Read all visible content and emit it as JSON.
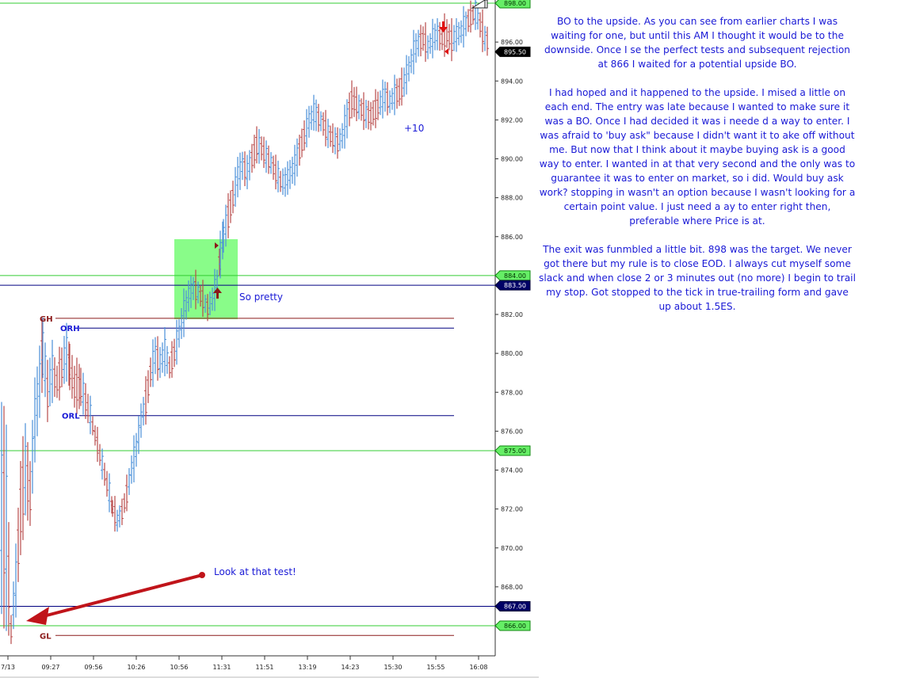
{
  "chart_data": {
    "type": "bar",
    "description_type": "ohlc-price-bars",
    "ylim": [
      864.2,
      898.4
    ],
    "y_ticks": [
      866,
      868,
      870,
      872,
      874,
      876,
      878,
      880,
      882,
      884,
      886,
      888,
      890,
      892,
      894,
      896,
      898
    ],
    "y_tick_labels": [
      "866.00",
      "868.00",
      "870.00",
      "872.00",
      "874.00",
      "876.00",
      "878.00",
      "880.00",
      "882.00",
      "884.00",
      "886.00",
      "888.00",
      "890.00",
      "892.00",
      "894.00",
      "896.00",
      "898.00"
    ],
    "x_tick_labels": [
      "7/13",
      "09:27",
      "09:56",
      "10:26",
      "10:56",
      "11:31",
      "11:51",
      "13:19",
      "14:23",
      "15:30",
      "15:55",
      "16:08"
    ],
    "colors": {
      "up_bar": "#4a90d9",
      "down_bar": "#b84a4a",
      "green_line": "#33cc33",
      "navy_line": "#000080",
      "red_line": "#8b1a1a",
      "box": "#7cfc7c",
      "arrow": "#c0141a"
    },
    "price_path": [
      [
        0,
        877,
        867
      ],
      [
        6,
        876,
        866
      ],
      [
        12,
        866,
        865.5
      ],
      [
        18,
        869.5,
        867
      ],
      [
        24,
        874,
        870
      ],
      [
        30,
        876,
        872
      ],
      [
        36,
        874,
        871.5
      ],
      [
        42,
        878,
        875
      ],
      [
        48,
        880,
        877
      ],
      [
        52,
        881.5,
        879
      ],
      [
        58,
        879,
        877
      ],
      [
        64,
        880,
        878
      ],
      [
        70,
        879,
        878
      ],
      [
        76,
        880,
        878.5
      ],
      [
        82,
        881,
        879
      ],
      [
        86,
        880,
        878.5
      ],
      [
        92,
        879,
        877.5
      ],
      [
        100,
        879,
        877.5
      ],
      [
        106,
        878,
        877
      ],
      [
        112,
        877,
        876.5
      ],
      [
        118,
        876,
        875.5
      ],
      [
        124,
        875,
        874.5
      ],
      [
        130,
        874,
        873.5
      ],
      [
        136,
        873,
        872.5
      ],
      [
        140,
        872.2,
        871.8
      ],
      [
        146,
        871.5,
        871.2
      ],
      [
        152,
        872,
        871.6
      ],
      [
        158,
        873,
        872.5
      ],
      [
        164,
        874.5,
        873.5
      ],
      [
        170,
        875.5,
        874.5
      ],
      [
        176,
        877,
        876
      ],
      [
        182,
        878,
        877
      ],
      [
        188,
        879.5,
        878.5
      ],
      [
        194,
        880.5,
        879.2
      ],
      [
        200,
        880,
        879
      ],
      [
        206,
        880.5,
        879.5
      ],
      [
        212,
        879.5,
        879
      ],
      [
        218,
        880.5,
        879.5
      ],
      [
        224,
        881.5,
        880.5
      ],
      [
        230,
        882.5,
        881.5
      ],
      [
        236,
        883.3,
        882.5
      ],
      [
        242,
        883.6,
        883
      ],
      [
        248,
        883.4,
        882.8
      ],
      [
        254,
        883,
        882.5
      ],
      [
        260,
        882.5,
        882.1
      ],
      [
        266,
        883,
        882.5
      ],
      [
        272,
        884,
        883.2
      ],
      [
        276,
        885.5,
        884.5
      ],
      [
        280,
        886.5,
        885.5
      ],
      [
        286,
        887.5,
        886.5
      ],
      [
        292,
        888.5,
        887.5
      ],
      [
        298,
        889.5,
        888.5
      ],
      [
        304,
        890,
        889.2
      ],
      [
        310,
        889.5,
        889
      ],
      [
        316,
        890.5,
        889.5
      ],
      [
        322,
        891,
        890.3
      ],
      [
        328,
        890.8,
        890.2
      ],
      [
        334,
        890.3,
        889.8
      ],
      [
        340,
        890,
        889.5
      ],
      [
        346,
        889.5,
        889
      ],
      [
        352,
        889,
        888.6
      ],
      [
        358,
        889,
        888.5
      ],
      [
        364,
        889.5,
        888.8
      ],
      [
        370,
        890,
        889.2
      ],
      [
        376,
        890.8,
        890
      ],
      [
        382,
        891.5,
        890.8
      ],
      [
        388,
        892.2,
        891.5
      ],
      [
        394,
        892.6,
        892
      ],
      [
        400,
        892.3,
        891.8
      ],
      [
        406,
        892,
        891.5
      ],
      [
        412,
        891.5,
        891
      ],
      [
        418,
        891.2,
        890.8
      ],
      [
        424,
        891,
        890.5
      ],
      [
        430,
        891.5,
        890.8
      ],
      [
        436,
        892.5,
        891.5
      ],
      [
        442,
        893.5,
        892.5
      ],
      [
        448,
        893,
        892.5
      ],
      [
        454,
        892.8,
        892.2
      ],
      [
        460,
        892.5,
        892
      ],
      [
        466,
        892.5,
        891.8
      ],
      [
        472,
        892.8,
        892.2
      ],
      [
        478,
        893.2,
        892.5
      ],
      [
        484,
        893.5,
        892.8
      ],
      [
        490,
        893.2,
        892.6
      ],
      [
        496,
        893.5,
        892.9
      ],
      [
        502,
        893.8,
        893
      ],
      [
        508,
        894.3,
        893.5
      ],
      [
        514,
        895,
        894.2
      ],
      [
        520,
        895.8,
        895
      ],
      [
        526,
        896.2,
        895.6
      ],
      [
        532,
        896.5,
        895.8
      ],
      [
        538,
        896,
        895.4
      ],
      [
        544,
        896.4,
        895.8
      ],
      [
        550,
        896.7,
        896
      ],
      [
        556,
        896.5,
        895.8
      ],
      [
        562,
        896.8,
        896
      ],
      [
        568,
        896.5,
        895.6
      ],
      [
        574,
        896.6,
        896
      ],
      [
        580,
        896.8,
        896.2
      ],
      [
        586,
        897.2,
        896.6
      ],
      [
        592,
        897.5,
        897
      ],
      [
        598,
        897.8,
        897.2
      ],
      [
        604,
        897.2,
        896.5
      ],
      [
        610,
        896.5,
        895.8
      ],
      [
        616,
        896.2,
        895.5
      ]
    ],
    "levels": [
      {
        "name": "green-898",
        "y": 898.0,
        "color": "#33cc33",
        "x_from": 0,
        "x_to": 625,
        "tag": "898.00",
        "tag_style": "green"
      },
      {
        "name": "green-884",
        "y": 884.0,
        "color": "#33cc33",
        "x_from": 0,
        "x_to": 625,
        "tag": "884.00",
        "tag_style": "green"
      },
      {
        "name": "navy-883-5",
        "y": 883.5,
        "color": "#000080",
        "x_from": 0,
        "x_to": 625,
        "tag": "883.50",
        "tag_style": "navy"
      },
      {
        "name": "gh-line",
        "y": 881.8,
        "color": "#8b1a1a",
        "x_from": 70,
        "x_to": 573,
        "tag": "",
        "tag_style": ""
      },
      {
        "name": "orh-line",
        "y": 881.3,
        "color": "#000080",
        "x_from": 100,
        "x_to": 573,
        "tag": "",
        "tag_style": ""
      },
      {
        "name": "orl-line",
        "y": 876.8,
        "color": "#000080",
        "x_from": 100,
        "x_to": 573,
        "tag": "",
        "tag_style": ""
      },
      {
        "name": "green-875",
        "y": 875.0,
        "color": "#33cc33",
        "x_from": 0,
        "x_to": 625,
        "tag": "875.00",
        "tag_style": "green"
      },
      {
        "name": "navy-867",
        "y": 867.0,
        "color": "#000080",
        "x_from": 0,
        "x_to": 625,
        "tag": "867.00",
        "tag_style": "navy"
      },
      {
        "name": "green-866",
        "y": 866.0,
        "color": "#33cc33",
        "x_from": 0,
        "x_to": 625,
        "tag": "866.00",
        "tag_style": "green"
      },
      {
        "name": "gl-line",
        "y": 865.5,
        "color": "#8b1a1a",
        "x_from": 70,
        "x_to": 573,
        "tag": "",
        "tag_style": ""
      }
    ],
    "level_labels": [
      {
        "text": "GH",
        "y": 881.8,
        "color": "#8b1a1a"
      },
      {
        "text": "ORH",
        "y": 881.3,
        "color": "#1a1ad6"
      },
      {
        "text": "ORL",
        "y": 876.8,
        "color": "#1a1ad6"
      },
      {
        "text": "GL",
        "y": 865.5,
        "color": "#8b1a1a"
      }
    ],
    "current_price_tag": "895.50",
    "annotations": {
      "so_pretty": "So pretty",
      "plus_ten": "+10",
      "look_at_test": "Look at that test!"
    },
    "grid": false
  },
  "notes": {
    "p1": "BO to the upside. As you can see from earlier charts I was waiting for one, but until this AM I thought it would be to the downside. Once I se the perfect tests and subsequent rejection at 866 I waited for a potential upside BO.",
    "p2": "I had hoped and it happened to the upside. I mised a little on each end. The entry was late because I wanted to make sure it was a BO. Once I had decided it was i neede d a way to enter. I was afraid to 'buy ask\" because I didn't want it to ake off without me. But now that I think about it maybe buying ask is a good way to enter. I wanted in at that very second and the only was to guarantee it was to enter on market, so i did. Would buy ask work? stopping in wasn't an option because I wasn't looking for a certain point value. I just need a ay to enter right then, preferable where Price is at.",
    "p3": "The exit was funmbled a little  bit. 898 was the target. We never got there but my rule is to close EOD. I always cut myself some slack and when close 2 or 3 minutes out (no more) I begin to trail my stop. Got stopped to the tick in true-trailing form and gave up about 1.5ES."
  }
}
